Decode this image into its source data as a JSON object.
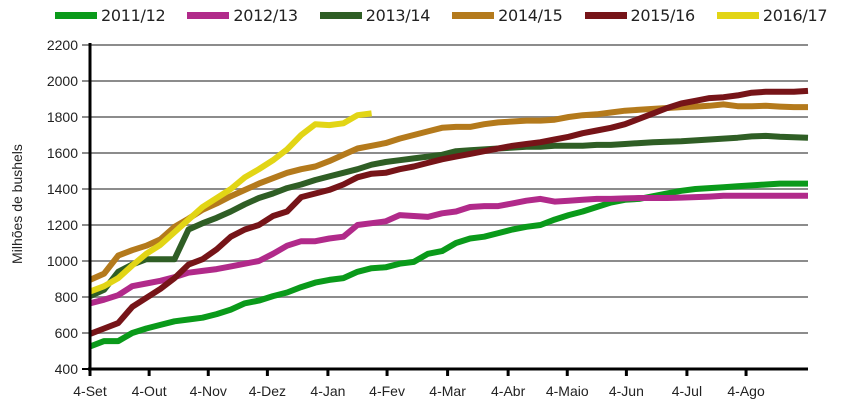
{
  "chart_data": {
    "type": "line",
    "title": "",
    "xlabel": "",
    "ylabel": "Milhões de bushels",
    "ylim": [
      400,
      2200
    ],
    "yticks": [
      400,
      600,
      800,
      1000,
      1200,
      1400,
      1600,
      1800,
      2000,
      2200
    ],
    "xtick_labels": [
      "4-Set",
      "4-Out",
      "4-Nov",
      "4-Dez",
      "4-Jan",
      "4-Fev",
      "4-Mar",
      "4-Abr",
      "4-Maio",
      "4-Jun",
      "4-Jul",
      "4-Ago"
    ],
    "xtick_week_index": [
      0,
      4.2,
      8.4,
      12.6,
      16.9,
      21.1,
      25.4,
      29.7,
      33.9,
      38.1,
      42.4,
      46.6
    ],
    "grid": "horizontal",
    "legend_position": "top",
    "x_unit": "week index (0 = 4-Set)",
    "series": [
      {
        "name": "2011/12",
        "color": "#0a9a1a",
        "values": [
          525,
          555,
          555,
          600,
          625,
          645,
          665,
          675,
          685,
          705,
          730,
          765,
          780,
          805,
          825,
          855,
          880,
          895,
          905,
          940,
          960,
          965,
          985,
          995,
          1040,
          1055,
          1100,
          1125,
          1135,
          1155,
          1175,
          1190,
          1200,
          1230,
          1255,
          1275,
          1300,
          1325,
          1340,
          1345,
          1360,
          1375,
          1390,
          1400,
          1405,
          1410,
          1415,
          1420,
          1425,
          1430,
          1430,
          1430
        ]
      },
      {
        "name": "2012/13",
        "color": "#b12a8a",
        "values": [
          765,
          785,
          810,
          860,
          875,
          890,
          910,
          935,
          945,
          955,
          970,
          985,
          1000,
          1040,
          1085,
          1110,
          1110,
          1125,
          1135,
          1200,
          1210,
          1220,
          1255,
          1250,
          1245,
          1265,
          1275,
          1300,
          1305,
          1305,
          1320,
          1335,
          1345,
          1330,
          1335,
          1340,
          1345,
          1345,
          1348,
          1350,
          1350,
          1350,
          1352,
          1355,
          1358,
          1362,
          1362,
          1362,
          1362,
          1362,
          1362,
          1362
        ]
      },
      {
        "name": "2013/14",
        "color": "#2f5e25",
        "values": [
          805,
          840,
          940,
          980,
          1010,
          1010,
          1010,
          1175,
          1210,
          1240,
          1275,
          1315,
          1350,
          1375,
          1405,
          1425,
          1450,
          1470,
          1490,
          1510,
          1535,
          1550,
          1560,
          1570,
          1580,
          1590,
          1610,
          1615,
          1620,
          1625,
          1630,
          1635,
          1635,
          1640,
          1640,
          1640,
          1645,
          1645,
          1650,
          1655,
          1660,
          1662,
          1665,
          1670,
          1675,
          1680,
          1685,
          1692,
          1695,
          1690,
          1688,
          1685
        ]
      },
      {
        "name": "2014/15",
        "color": "#b47a1c",
        "values": [
          895,
          930,
          1030,
          1060,
          1085,
          1120,
          1190,
          1235,
          1285,
          1320,
          1360,
          1395,
          1430,
          1460,
          1490,
          1510,
          1525,
          1555,
          1590,
          1625,
          1640,
          1655,
          1680,
          1700,
          1720,
          1740,
          1745,
          1745,
          1760,
          1770,
          1775,
          1780,
          1780,
          1785,
          1800,
          1810,
          1815,
          1825,
          1835,
          1840,
          1845,
          1850,
          1855,
          1858,
          1862,
          1870,
          1860,
          1860,
          1862,
          1858,
          1855,
          1855
        ]
      },
      {
        "name": "2015/16",
        "color": "#761418",
        "values": [
          595,
          625,
          655,
          745,
          795,
          845,
          905,
          980,
          1010,
          1065,
          1135,
          1175,
          1200,
          1250,
          1275,
          1355,
          1375,
          1395,
          1425,
          1465,
          1485,
          1490,
          1510,
          1525,
          1545,
          1565,
          1580,
          1595,
          1610,
          1625,
          1640,
          1650,
          1660,
          1675,
          1690,
          1710,
          1725,
          1740,
          1760,
          1790,
          1820,
          1850,
          1875,
          1890,
          1905,
          1910,
          1920,
          1935,
          1940,
          1940,
          1940,
          1945
        ]
      },
      {
        "name": "2016/17",
        "color": "#e2d515",
        "values": [
          830,
          860,
          905,
          975,
          1040,
          1090,
          1160,
          1230,
          1300,
          1350,
          1400,
          1465,
          1510,
          1560,
          1620,
          1700,
          1760,
          1755,
          1765,
          1810,
          1820
        ]
      }
    ]
  },
  "legend": [
    {
      "label": "2011/12",
      "color": "#0a9a1a"
    },
    {
      "label": "2012/13",
      "color": "#b12a8a"
    },
    {
      "label": "2013/14",
      "color": "#2f5e25"
    },
    {
      "label": "2014/15",
      "color": "#b47a1c"
    },
    {
      "label": "2015/16",
      "color": "#761418"
    },
    {
      "label": "2016/17",
      "color": "#e2d515"
    }
  ],
  "axis": {
    "ylabel": "Milhões de bushels"
  }
}
